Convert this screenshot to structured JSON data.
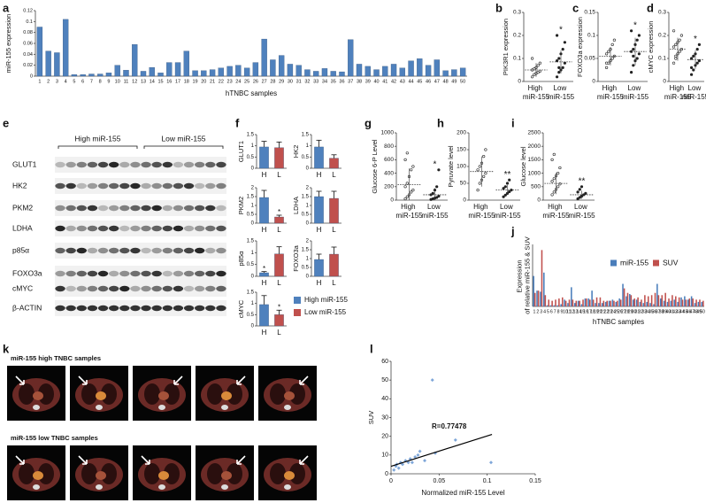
{
  "panel_letters": [
    "a",
    "b",
    "c",
    "d",
    "e",
    "f",
    "g",
    "h",
    "i",
    "j",
    "k",
    "l"
  ],
  "chart_data": [
    {
      "type": "bar",
      "ylabel": "miR-155 expression",
      "xlabel": "hTNBC samples",
      "color": "#4f81bd",
      "categories": [
        "1",
        "2",
        "3",
        "4",
        "5",
        "6",
        "7",
        "8",
        "9",
        "10",
        "11",
        "12",
        "13",
        "14",
        "15",
        "16",
        "17",
        "18",
        "19",
        "20",
        "21",
        "22",
        "23",
        "24",
        "25",
        "26",
        "27",
        "28",
        "29",
        "30",
        "31",
        "32",
        "33",
        "34",
        "35",
        "36",
        "37",
        "38",
        "39",
        "40",
        "41",
        "42",
        "43",
        "44",
        "45",
        "46",
        "47",
        "48",
        "49",
        "50"
      ],
      "values": [
        0.09,
        0.046,
        0.043,
        0.104,
        0.003,
        0.003,
        0.004,
        0.004,
        0.006,
        0.02,
        0.011,
        0.058,
        0.009,
        0.016,
        0.006,
        0.025,
        0.025,
        0.046,
        0.01,
        0.01,
        0.012,
        0.015,
        0.018,
        0.02,
        0.015,
        0.025,
        0.068,
        0.03,
        0.038,
        0.022,
        0.02,
        0.012,
        0.009,
        0.014,
        0.009,
        0.008,
        0.067,
        0.022,
        0.018,
        0.012,
        0.018,
        0.022,
        0.015,
        0.028,
        0.032,
        0.02,
        0.03,
        0.01,
        0.012,
        0.015
      ],
      "ylim": [
        0,
        0.12
      ],
      "yticks": [
        0,
        0.02,
        0.04,
        0.06,
        0.08,
        0.1,
        0.12
      ]
    },
    {
      "type": "strip",
      "ylabel": "PIK3R1 expression",
      "categories": [
        "High miR-155",
        "Low miR-155"
      ],
      "values": [
        [
          0.02,
          0.03,
          0.035,
          0.04,
          0.045,
          0.05,
          0.055,
          0.06,
          0.07,
          0.08,
          0.1
        ],
        [
          0.02,
          0.04,
          0.05,
          0.06,
          0.08,
          0.09,
          0.1,
          0.12,
          0.14,
          0.17,
          0.2,
          0.06
        ]
      ],
      "means": [
        0.05,
        0.085
      ],
      "sds": [
        0.03,
        0.05
      ],
      "significance": [
        null,
        "*"
      ],
      "ylim": [
        0,
        0.3
      ],
      "yticks": [
        0,
        0.1,
        0.2,
        0.3
      ]
    },
    {
      "type": "strip",
      "ylabel": "FOXO3a expression",
      "categories": [
        "High miR-155",
        "Low miR-155"
      ],
      "values": [
        [
          0.03,
          0.04,
          0.045,
          0.05,
          0.055,
          0.06,
          0.065,
          0.07,
          0.08,
          0.09,
          0.04
        ],
        [
          0.02,
          0.035,
          0.045,
          0.05,
          0.06,
          0.065,
          0.07,
          0.08,
          0.09,
          0.1,
          0.11,
          0.055
        ]
      ],
      "means": [
        0.055,
        0.065
      ],
      "sds": [
        0.02,
        0.03
      ],
      "significance": [
        null,
        "*"
      ],
      "ylim": [
        0,
        0.15
      ],
      "yticks": [
        0,
        0.05,
        0.1,
        0.15
      ]
    },
    {
      "type": "strip",
      "ylabel": "cMYC expression",
      "categories": [
        "High miR-155",
        "Low miR-155"
      ],
      "values": [
        [
          0.08,
          0.1,
          0.12,
          0.13,
          0.14,
          0.15,
          0.16,
          0.17,
          0.18,
          0.2,
          0.22,
          0.11
        ],
        [
          0.03,
          0.05,
          0.07,
          0.08,
          0.09,
          0.1,
          0.11,
          0.12,
          0.14,
          0.16,
          0.06
        ]
      ],
      "means": [
        0.14,
        0.095
      ],
      "sds": [
        0.05,
        0.04
      ],
      "significance": [
        null,
        "*"
      ],
      "ylim": [
        0,
        0.3
      ],
      "yticks": [
        0,
        0.1,
        0.2,
        0.3
      ]
    },
    {
      "type": "bar",
      "ylabel": "GLUT1",
      "categories": [
        "H",
        "L"
      ],
      "values": [
        0.95,
        0.92
      ],
      "errors": [
        0.25,
        0.25
      ],
      "colors": [
        "#4f81bd",
        "#c0504d"
      ],
      "ylim": [
        0,
        1.5
      ],
      "yticks": [
        0,
        0.5,
        1,
        1.5
      ]
    },
    {
      "type": "bar",
      "ylabel": "HK2",
      "categories": [
        "H",
        "L"
      ],
      "values": [
        0.95,
        0.45
      ],
      "errors": [
        0.3,
        0.15
      ],
      "colors": [
        "#4f81bd",
        "#c0504d"
      ],
      "ylim": [
        0,
        1.5
      ],
      "yticks": [
        0,
        0.5,
        1,
        1.5
      ]
    },
    {
      "type": "bar",
      "ylabel": "PKM2",
      "categories": [
        "H",
        "L"
      ],
      "values": [
        1.45,
        0.35
      ],
      "errors": [
        0.4,
        0.1
      ],
      "colors": [
        "#4f81bd",
        "#c0504d"
      ],
      "significance": [
        null,
        "*"
      ],
      "ylim": [
        0,
        2
      ],
      "yticks": [
        0,
        0.5,
        1,
        1.5,
        2
      ]
    },
    {
      "type": "bar",
      "ylabel": "LDHA",
      "categories": [
        "H",
        "L"
      ],
      "values": [
        1.5,
        1.4
      ],
      "errors": [
        0.3,
        0.4
      ],
      "colors": [
        "#4f81bd",
        "#c0504d"
      ],
      "ylim": [
        0,
        2
      ],
      "yticks": [
        0,
        0.5,
        1,
        1.5,
        2
      ]
    },
    {
      "type": "bar",
      "ylabel": "p85α",
      "categories": [
        "H",
        "L"
      ],
      "values": [
        0.15,
        0.95
      ],
      "errors": [
        0.05,
        0.3
      ],
      "colors": [
        "#4f81bd",
        "#c0504d"
      ],
      "significance": [
        "*",
        null
      ],
      "ylim": [
        0,
        1.5
      ],
      "yticks": [
        0,
        0.5,
        1,
        1.5
      ]
    },
    {
      "type": "bar",
      "ylabel": "FOXO3a",
      "categories": [
        "H",
        "L"
      ],
      "values": [
        0.95,
        1.25
      ],
      "errors": [
        0.3,
        0.4
      ],
      "colors": [
        "#4f81bd",
        "#c0504d"
      ],
      "ylim": [
        0,
        2
      ],
      "yticks": [
        0,
        0.5,
        1,
        1.5,
        2
      ]
    },
    {
      "type": "bar",
      "ylabel": "cMYC",
      "categories": [
        "H",
        "L"
      ],
      "values": [
        0.95,
        0.5
      ],
      "errors": [
        0.4,
        0.2
      ],
      "colors": [
        "#4f81bd",
        "#c0504d"
      ],
      "significance": [
        null,
        "*"
      ],
      "ylim": [
        0,
        1.5
      ],
      "yticks": [
        0,
        0.5,
        1,
        1.5
      ]
    },
    {
      "type": "strip",
      "ylabel": "Glucose 6-P Level",
      "categories": [
        "High miR-155",
        "Low miR-155"
      ],
      "values": [
        [
          20,
          50,
          80,
          120,
          150,
          200,
          250,
          350,
          450,
          500,
          600,
          700
        ],
        [
          10,
          20,
          30,
          40,
          60,
          80,
          100,
          150,
          200,
          450
        ]
      ],
      "means": [
        230,
        80
      ],
      "sds": [
        240,
        100
      ],
      "significance": [
        null,
        "*"
      ],
      "ylim": [
        0,
        1000
      ],
      "yticks": [
        0,
        200,
        400,
        600,
        800,
        1000
      ]
    },
    {
      "type": "strip",
      "ylabel": "Pyruvate  level",
      "categories": [
        "High miR-155",
        "Low miR-155"
      ],
      "values": [
        [
          30,
          50,
          60,
          70,
          80,
          90,
          100,
          110,
          130,
          150
        ],
        [
          10,
          15,
          20,
          25,
          30,
          35,
          40,
          50,
          60
        ]
      ],
      "means": [
        85,
        30
      ],
      "sds": [
        45,
        15
      ],
      "significance": [
        null,
        "**"
      ],
      "ylim": [
        0,
        200
      ],
      "yticks": [
        0,
        50,
        100,
        150,
        200
      ]
    },
    {
      "type": "strip",
      "ylabel": "Glucose  level",
      "categories": [
        "High miR-155",
        "Low miR-155"
      ],
      "values": [
        [
          200,
          300,
          400,
          500,
          600,
          700,
          800,
          900,
          1000,
          1200,
          1500,
          1700
        ],
        [
          50,
          100,
          150,
          200,
          250,
          300,
          400,
          500
        ]
      ],
      "means": [
        620,
        200
      ],
      "sds": [
        400,
        150
      ],
      "significance": [
        null,
        "**"
      ],
      "ylim": [
        0,
        2500
      ],
      "yticks": [
        0,
        500,
        1000,
        1500,
        2000,
        2500
      ]
    },
    {
      "type": "grouped-bar",
      "ylabel": "Expression of relative miR-155 & SUV",
      "xlabel": "hTNBC samples",
      "categories": [
        "1",
        "2",
        "3",
        "4",
        "5",
        "6",
        "7",
        "8",
        "9",
        "10",
        "11",
        "12",
        "13",
        "14",
        "15",
        "16",
        "17",
        "18",
        "19",
        "20",
        "21",
        "22",
        "23",
        "24",
        "25",
        "26",
        "27",
        "28",
        "29",
        "30",
        "31",
        "32",
        "33",
        "34",
        "35",
        "36",
        "37",
        "38",
        "39",
        "40",
        "41",
        "42",
        "43",
        "44",
        "45",
        "46",
        "47",
        "48",
        "49",
        "50"
      ],
      "series": [
        {
          "name": "miR-155",
          "color": "#4a7ebb",
          "values": [
            27,
            14,
            13,
            30,
            1,
            1,
            1,
            1,
            2,
            6,
            3,
            17,
            3,
            5,
            2,
            7,
            7,
            14,
            3,
            3,
            3,
            4,
            5,
            6,
            4,
            7,
            20,
            9,
            11,
            6,
            6,
            4,
            3,
            4,
            3,
            2,
            20,
            7,
            5,
            4,
            5,
            6,
            4,
            8,
            9,
            6,
            9,
            3,
            4,
            4
          ]
        },
        {
          "name": "SUV",
          "color": "#c0504d",
          "values": [
            12,
            14,
            50,
            10,
            6,
            5,
            6,
            7,
            8,
            5,
            6,
            6,
            5,
            5,
            6,
            7,
            6,
            6,
            8,
            8,
            5,
            5,
            5,
            5,
            5,
            6,
            16,
            12,
            10,
            7,
            8,
            6,
            10,
            9,
            10,
            12,
            10,
            10,
            12,
            7,
            10,
            9,
            8,
            6,
            6,
            7,
            7,
            6,
            6,
            5
          ]
        }
      ],
      "ylim": [
        0,
        55
      ]
    },
    {
      "type": "scatter",
      "ylabel": "SUV",
      "xlabel": "Normalized miR-155 Level",
      "annotation": "R=0.77478",
      "color": "#7fa7d9",
      "x": [
        0.003,
        0.005,
        0.006,
        0.008,
        0.01,
        0.012,
        0.015,
        0.018,
        0.02,
        0.022,
        0.025,
        0.028,
        0.03,
        0.035,
        0.043,
        0.046,
        0.067,
        0.104
      ],
      "y": [
        2,
        4,
        5,
        3,
        6,
        5,
        7,
        6,
        8,
        6,
        9,
        10,
        12,
        7,
        50,
        11,
        18,
        6
      ],
      "trendline": {
        "x": [
          0,
          0.105
        ],
        "y": [
          4,
          21
        ]
      },
      "xlim": [
        0,
        0.15
      ],
      "xticks": [
        0,
        0.05,
        0.1,
        0.15
      ],
      "ylim": [
        0,
        60
      ],
      "yticks": [
        0,
        10,
        20,
        30,
        40,
        50,
        60
      ]
    }
  ],
  "f_legend": [
    {
      "name": "High miR-155",
      "color": "#4f81bd"
    },
    {
      "name": "Low miR-155",
      "color": "#c0504d"
    }
  ],
  "blot": {
    "groups": [
      "High miR-155",
      "Low miR-155"
    ],
    "rows": [
      "GLUT1",
      "HK2",
      "PKM2",
      "LDHA",
      "p85α",
      "FOXO3a",
      "cMYC",
      "β-ACTIN"
    ]
  },
  "pet": {
    "rows": [
      "miR-155 high  TNBC samples",
      "miR-155 low TNBC samples"
    ]
  }
}
